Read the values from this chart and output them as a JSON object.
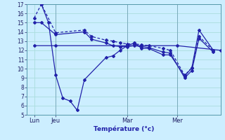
{
  "background_color": "#cceeff",
  "grid_color": "#aadddd",
  "line_color": "#2222aa",
  "xlabel": "Température (°c)",
  "ylim": [
    5,
    17
  ],
  "yticks": [
    5,
    6,
    7,
    8,
    9,
    10,
    11,
    12,
    13,
    14,
    15,
    16,
    17
  ],
  "xlim": [
    0,
    27
  ],
  "x_ticks": [
    1,
    4,
    14,
    21
  ],
  "x_labels": [
    "Lun",
    "Jeu",
    "Mar",
    "Mer"
  ],
  "vlines": [
    4,
    14,
    21
  ],
  "line_flat_x": [
    1,
    4,
    14,
    21,
    27
  ],
  "line_flat_y": [
    12.5,
    12.5,
    12.5,
    12.5,
    12.0
  ],
  "line_dash_x": [
    1,
    2,
    4,
    8,
    9,
    11,
    12,
    13,
    14,
    15,
    16,
    17,
    19,
    20,
    22,
    23,
    24,
    26
  ],
  "line_dash_y": [
    15.5,
    17.0,
    13.9,
    14.2,
    13.5,
    13.1,
    13.0,
    12.8,
    12.7,
    12.7,
    12.6,
    12.5,
    12.2,
    12.0,
    9.3,
    10.1,
    13.5,
    12.0
  ],
  "line_solid_x": [
    1,
    2,
    4,
    8,
    9,
    11,
    12,
    13,
    14,
    15,
    16,
    17,
    19,
    20,
    22,
    23,
    24,
    26
  ],
  "line_solid_y": [
    15.0,
    15.0,
    13.7,
    14.0,
    13.2,
    12.8,
    12.5,
    12.4,
    12.4,
    12.5,
    12.4,
    12.3,
    11.8,
    11.7,
    9.0,
    9.8,
    13.3,
    11.8
  ],
  "line_bot_x": [
    2,
    3,
    4,
    5,
    6,
    7,
    8,
    11,
    12,
    13,
    14,
    15,
    16,
    17,
    19,
    20,
    22,
    23,
    24,
    26
  ],
  "line_bot_y": [
    17.0,
    15.0,
    9.3,
    6.8,
    6.5,
    5.5,
    8.8,
    11.2,
    11.4,
    12.0,
    12.5,
    12.8,
    12.2,
    12.2,
    11.5,
    11.5,
    9.2,
    10.1,
    14.2,
    12.0
  ]
}
